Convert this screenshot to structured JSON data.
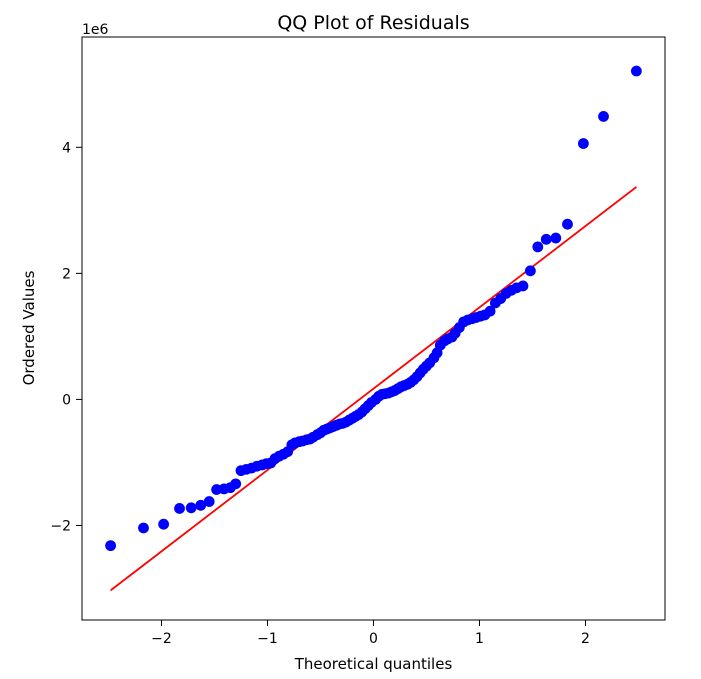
{
  "chart_data": {
    "type": "scatter",
    "title": "QQ Plot of Residuals",
    "xlabel": "Theoretical quantiles",
    "ylabel": "Ordered Values",
    "offset_label": "1e6",
    "xlim": [
      -2.75,
      2.75
    ],
    "ylim": [
      -3.5,
      5.75
    ],
    "x_ticks": [
      {
        "value": -2,
        "label": "−2"
      },
      {
        "value": -1,
        "label": "−1"
      },
      {
        "value": 0,
        "label": "0"
      },
      {
        "value": 1,
        "label": "1"
      },
      {
        "value": 2,
        "label": "2"
      }
    ],
    "y_ticks": [
      {
        "value": -2,
        "label": "−2"
      },
      {
        "value": 0,
        "label": "0"
      },
      {
        "value": 2,
        "label": "2"
      },
      {
        "value": 4,
        "label": "4"
      }
    ],
    "grid": false,
    "legend": false,
    "colors": {
      "points": "#0000ff",
      "fit_line": "#ff0000"
    },
    "series": [
      {
        "type": "scatter",
        "points": [
          {
            "x": -2.48,
            "y": -2.32
          },
          {
            "x": -2.17,
            "y": -2.04
          },
          {
            "x": -1.98,
            "y": -1.98
          },
          {
            "x": -1.83,
            "y": -1.73
          },
          {
            "x": -1.72,
            "y": -1.72
          },
          {
            "x": -1.63,
            "y": -1.68
          },
          {
            "x": -1.55,
            "y": -1.62
          },
          {
            "x": -1.48,
            "y": -1.43
          },
          {
            "x": -1.41,
            "y": -1.42
          },
          {
            "x": -1.35,
            "y": -1.4
          },
          {
            "x": -1.3,
            "y": -1.34
          },
          {
            "x": -1.25,
            "y": -1.13
          },
          {
            "x": -1.2,
            "y": -1.11
          },
          {
            "x": -1.15,
            "y": -1.09
          },
          {
            "x": -1.1,
            "y": -1.06
          },
          {
            "x": -1.05,
            "y": -1.04
          },
          {
            "x": -1.01,
            "y": -1.02
          },
          {
            "x": -0.97,
            "y": -1.01
          },
          {
            "x": -0.93,
            "y": -0.94
          },
          {
            "x": -0.89,
            "y": -0.9
          },
          {
            "x": -0.85,
            "y": -0.87
          },
          {
            "x": -0.81,
            "y": -0.83
          },
          {
            "x": -0.77,
            "y": -0.72
          },
          {
            "x": -0.74,
            "y": -0.69
          },
          {
            "x": -0.7,
            "y": -0.67
          },
          {
            "x": -0.67,
            "y": -0.66
          },
          {
            "x": -0.63,
            "y": -0.64
          },
          {
            "x": -0.6,
            "y": -0.63
          },
          {
            "x": -0.57,
            "y": -0.6
          },
          {
            "x": -0.53,
            "y": -0.56
          },
          {
            "x": -0.5,
            "y": -0.53
          },
          {
            "x": -0.47,
            "y": -0.49
          },
          {
            "x": -0.44,
            "y": -0.47
          },
          {
            "x": -0.41,
            "y": -0.45
          },
          {
            "x": -0.38,
            "y": -0.43
          },
          {
            "x": -0.35,
            "y": -0.41
          },
          {
            "x": -0.32,
            "y": -0.39
          },
          {
            "x": -0.29,
            "y": -0.38
          },
          {
            "x": -0.26,
            "y": -0.36
          },
          {
            "x": -0.23,
            "y": -0.33
          },
          {
            "x": -0.2,
            "y": -0.3
          },
          {
            "x": -0.17,
            "y": -0.27
          },
          {
            "x": -0.14,
            "y": -0.24
          },
          {
            "x": -0.11,
            "y": -0.2
          },
          {
            "x": -0.08,
            "y": -0.15
          },
          {
            "x": -0.05,
            "y": -0.1
          },
          {
            "x": -0.02,
            "y": -0.05
          },
          {
            "x": 0.02,
            "y": 0.0
          },
          {
            "x": 0.05,
            "y": 0.05
          },
          {
            "x": 0.08,
            "y": 0.08
          },
          {
            "x": 0.11,
            "y": 0.09
          },
          {
            "x": 0.14,
            "y": 0.1
          },
          {
            "x": 0.17,
            "y": 0.12
          },
          {
            "x": 0.2,
            "y": 0.14
          },
          {
            "x": 0.23,
            "y": 0.17
          },
          {
            "x": 0.26,
            "y": 0.2
          },
          {
            "x": 0.29,
            "y": 0.22
          },
          {
            "x": 0.32,
            "y": 0.24
          },
          {
            "x": 0.35,
            "y": 0.27
          },
          {
            "x": 0.38,
            "y": 0.31
          },
          {
            "x": 0.41,
            "y": 0.36
          },
          {
            "x": 0.44,
            "y": 0.42
          },
          {
            "x": 0.47,
            "y": 0.48
          },
          {
            "x": 0.5,
            "y": 0.53
          },
          {
            "x": 0.53,
            "y": 0.58
          },
          {
            "x": 0.57,
            "y": 0.66
          },
          {
            "x": 0.6,
            "y": 0.74
          },
          {
            "x": 0.63,
            "y": 0.86
          },
          {
            "x": 0.67,
            "y": 0.93
          },
          {
            "x": 0.7,
            "y": 0.96
          },
          {
            "x": 0.74,
            "y": 0.99
          },
          {
            "x": 0.77,
            "y": 1.05
          },
          {
            "x": 0.81,
            "y": 1.14
          },
          {
            "x": 0.85,
            "y": 1.23
          },
          {
            "x": 0.89,
            "y": 1.26
          },
          {
            "x": 0.93,
            "y": 1.28
          },
          {
            "x": 0.97,
            "y": 1.3
          },
          {
            "x": 1.01,
            "y": 1.32
          },
          {
            "x": 1.05,
            "y": 1.34
          },
          {
            "x": 1.1,
            "y": 1.4
          },
          {
            "x": 1.15,
            "y": 1.53
          },
          {
            "x": 1.2,
            "y": 1.6
          },
          {
            "x": 1.25,
            "y": 1.68
          },
          {
            "x": 1.3,
            "y": 1.73
          },
          {
            "x": 1.35,
            "y": 1.77
          },
          {
            "x": 1.41,
            "y": 1.8
          },
          {
            "x": 1.48,
            "y": 2.04
          },
          {
            "x": 1.55,
            "y": 2.42
          },
          {
            "x": 1.63,
            "y": 2.54
          },
          {
            "x": 1.72,
            "y": 2.56
          },
          {
            "x": 1.83,
            "y": 2.78
          },
          {
            "x": 1.98,
            "y": 4.06
          },
          {
            "x": 2.17,
            "y": 4.49
          },
          {
            "x": 2.48,
            "y": 5.21
          }
        ]
      },
      {
        "type": "line",
        "points": [
          {
            "x": -2.48,
            "y": -3.03
          },
          {
            "x": 2.48,
            "y": 3.37
          }
        ]
      }
    ]
  }
}
